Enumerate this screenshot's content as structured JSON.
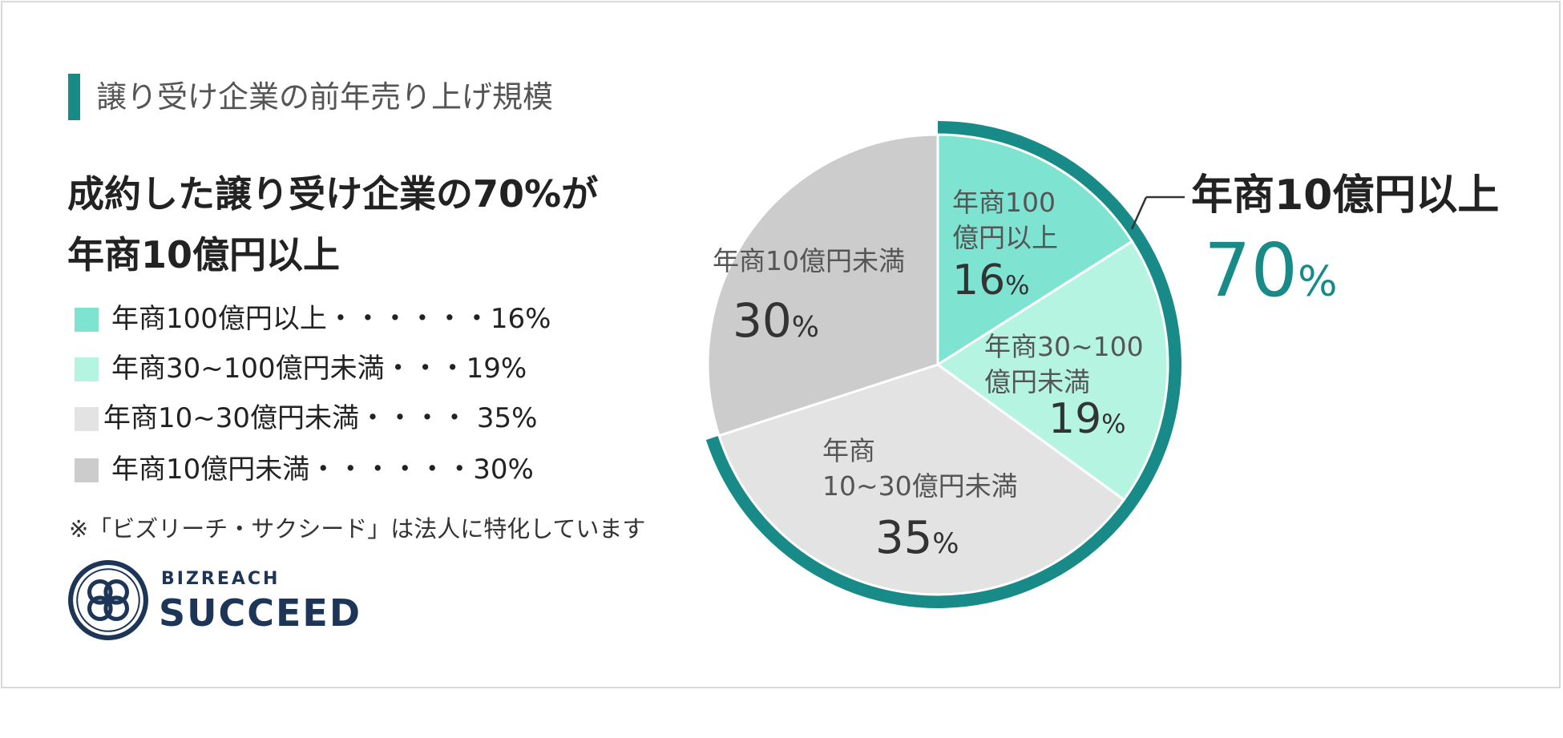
{
  "heading": "譲り受け企業の前年売り上げ規模",
  "headline": {
    "line1": "成約した譲り受け企業の70%が",
    "line2": "年商10億円以上"
  },
  "legend": [
    {
      "text": "年商100億円以上・・・・・・16%",
      "color": "#7fe3d2"
    },
    {
      "text": "年商30~100億円未満・・・19%",
      "color": "#b5f4e1"
    },
    {
      "text": "年商10~30億円未満・・・・ 35%",
      "color": "#e3e3e3"
    },
    {
      "text": "年商10億円未満・・・・・・30%",
      "color": "#cccccc"
    }
  ],
  "note": "※「ビズリーチ・サクシード」は法人に特化しています",
  "logo": {
    "small": "BIZREACH",
    "big": "SUCCEED"
  },
  "callout": {
    "label": "年商10億円以上",
    "value": "70",
    "unit": "%"
  },
  "colors": {
    "accent": "#188b88",
    "ring": "#188b88",
    "text_dark": "#333333",
    "brand_navy": "#1d3556"
  },
  "chart_data": {
    "type": "pie",
    "categories": [
      "年商100億円以上",
      "年商30~100億円未満",
      "年商10~30億円未満",
      "年商10億円未満"
    ],
    "values": [
      16,
      19,
      35,
      30
    ],
    "unit": "%",
    "slice_labels": [
      {
        "lines": [
          "年商100",
          "億円以上"
        ],
        "value": "16",
        "unit": "%"
      },
      {
        "lines": [
          "年商30~100",
          "億円未満"
        ],
        "value": "19",
        "unit": "%"
      },
      {
        "lines": [
          "年商",
          "10~30億円未満"
        ],
        "value": "35",
        "unit": "%"
      },
      {
        "lines": [
          "年商10億円未満"
        ],
        "value": "30",
        "unit": "%"
      }
    ],
    "colors": [
      "#7fe3d2",
      "#b5f4e1",
      "#e3e3e3",
      "#cccccc"
    ],
    "highlight": {
      "label": "年商10億円以上",
      "value": 70,
      "covers": [
        "年商100億円以上",
        "年商30~100億円未満",
        "年商10~30億円未満"
      ]
    }
  }
}
